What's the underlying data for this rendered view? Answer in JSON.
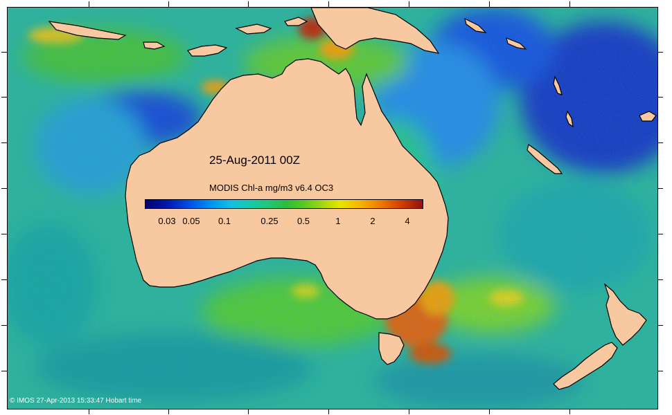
{
  "map": {
    "date_label": "25-Aug-2011 00Z",
    "legend_title": "MODIS Chl-a mg/m3 v6.4 OC3",
    "colorbar_ticks": [
      "0.03",
      "0.05",
      "0.1",
      "0.25",
      "0.5",
      "1",
      "2",
      "4"
    ],
    "credit": "© IMOS 27-Apr-2013 15:33:47 Hobart time"
  },
  "colors": {
    "land": "#f8c8a0",
    "ocean_base": "#3ab0a8",
    "low_chl": "#1040c8",
    "high_chl": "#c83c10"
  }
}
